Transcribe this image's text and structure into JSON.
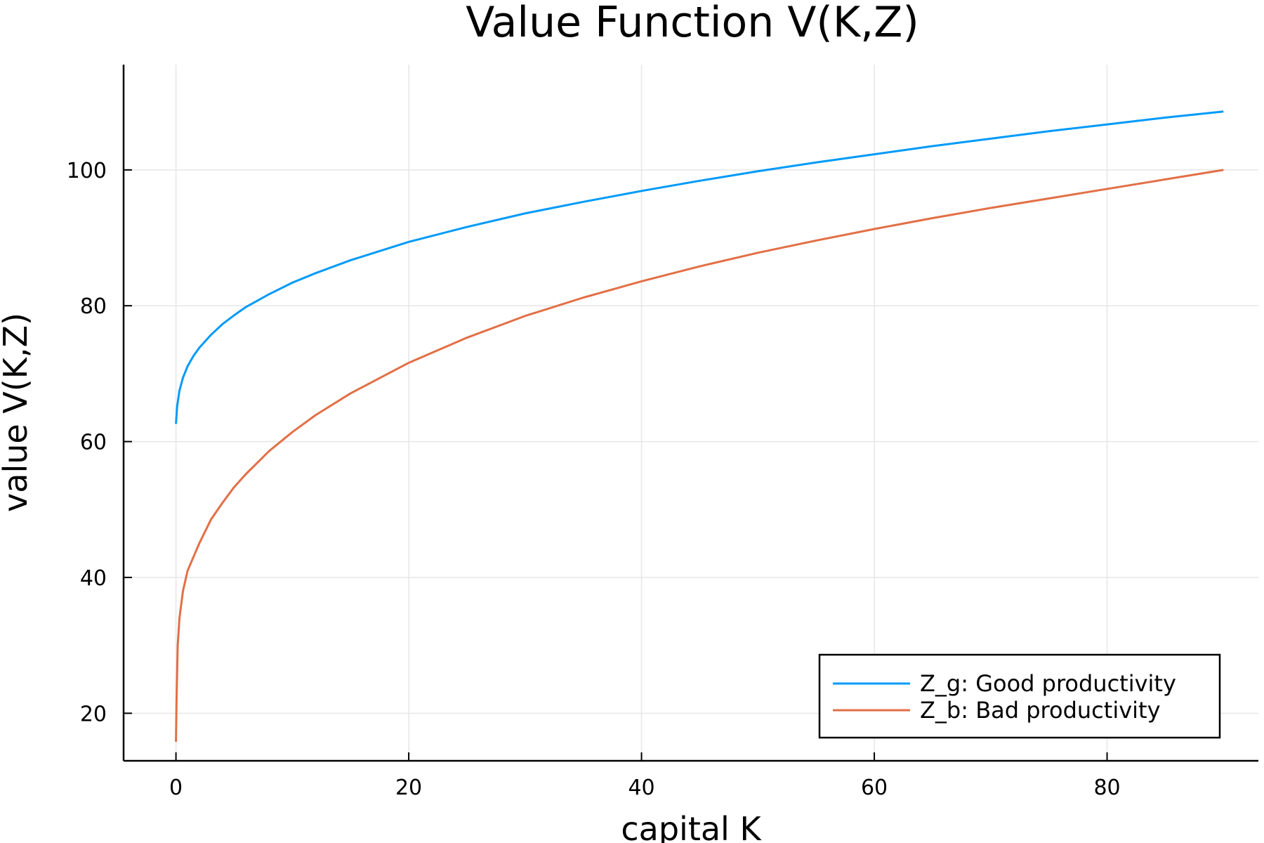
{
  "chart_data": {
    "type": "line",
    "title": "Value Function V(K,Z)",
    "xlabel": "capital K",
    "ylabel": "value V(K,Z)",
    "xlim": [
      -4.5,
      93.0
    ],
    "ylim": [
      13.0,
      115.5
    ],
    "xticks": [
      0,
      20,
      40,
      60,
      80
    ],
    "yticks": [
      20,
      40,
      60,
      80,
      100
    ],
    "grid": true,
    "legend_position": "bottom-right",
    "series": [
      {
        "name": "Z_g: Good productivity",
        "color": "#009af9",
        "x": [
          0,
          0.1,
          0.3,
          0.6,
          1,
          1.5,
          2,
          3,
          4,
          5,
          6,
          8,
          10,
          12,
          15,
          20,
          25,
          30,
          35,
          40,
          45,
          50,
          55,
          60,
          65,
          70,
          75,
          80,
          85,
          90
        ],
        "y": [
          62.6,
          65.2,
          67.5,
          69.4,
          71.1,
          72.6,
          73.8,
          75.7,
          77.3,
          78.6,
          79.8,
          81.7,
          83.4,
          84.8,
          86.7,
          89.4,
          91.6,
          93.6,
          95.3,
          96.9,
          98.4,
          99.8,
          101.1,
          102.3,
          103.5,
          104.6,
          105.7,
          106.7,
          107.7,
          108.6
        ]
      },
      {
        "name": "Z_b: Bad productivity",
        "color": "#e26f46",
        "x": [
          0,
          0.05,
          0.15,
          0.3,
          0.6,
          1,
          1.5,
          2,
          3,
          4,
          5,
          6,
          8,
          10,
          12,
          15,
          20,
          25,
          30,
          35,
          40,
          45,
          50,
          55,
          60,
          65,
          70,
          75,
          80,
          85,
          90
        ],
        "y": [
          15.8,
          22.0,
          30.0,
          34.0,
          38.0,
          41.0,
          43.0,
          45.0,
          48.5,
          51.0,
          53.3,
          55.2,
          58.6,
          61.4,
          63.9,
          67.1,
          71.6,
          75.3,
          78.5,
          81.2,
          83.6,
          85.8,
          87.8,
          89.6,
          91.3,
          92.9,
          94.4,
          95.8,
          97.2,
          98.6,
          100.0
        ]
      }
    ]
  }
}
